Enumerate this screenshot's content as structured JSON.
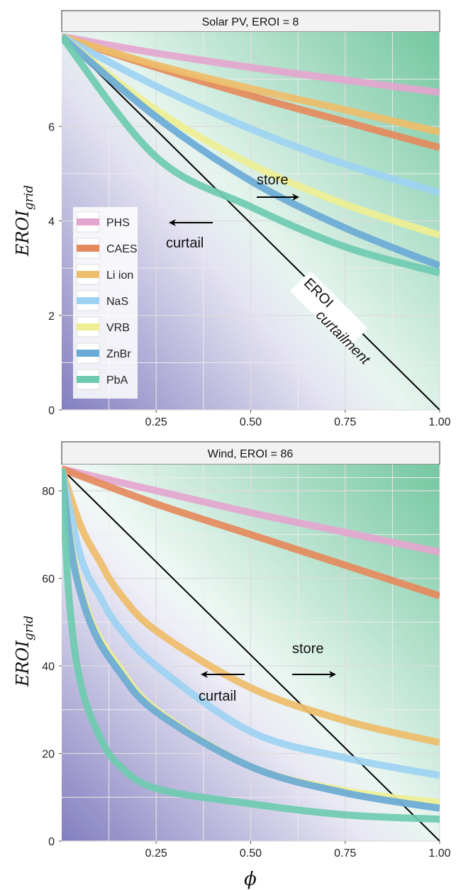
{
  "chart_data": [
    {
      "type": "line",
      "title": "Solar PV, EROI = 8",
      "ylabel": "EROI",
      "ylabel_sub": "grid",
      "xlabel": "",
      "xlim": [
        0,
        1
      ],
      "ylim": [
        0,
        8
      ],
      "xticks": [
        {
          "v": 0.25,
          "label": "0.25"
        },
        {
          "v": 0.5,
          "label": "0.50"
        },
        {
          "v": 0.75,
          "label": "0.75"
        },
        {
          "v": 1.0,
          "label": "1.00"
        }
      ],
      "yticks": [
        {
          "v": 0,
          "label": "0"
        },
        {
          "v": 2,
          "label": "2"
        },
        {
          "v": 4,
          "label": "4"
        },
        {
          "v": 6,
          "label": "6"
        }
      ],
      "grid": true,
      "legend_position": "left",
      "series": [
        {
          "name": "PHS",
          "color": "#e4a6cf",
          "x": [
            0,
            0.25,
            0.5,
            0.75,
            1.0
          ],
          "y": [
            7.9,
            7.55,
            7.25,
            6.98,
            6.72
          ]
        },
        {
          "name": "CAES",
          "color": "#e58a5c",
          "x": [
            0,
            0.25,
            0.5,
            0.75,
            1.0
          ],
          "y": [
            7.9,
            7.25,
            6.65,
            6.1,
            5.55
          ]
        },
        {
          "name": "Li ion",
          "color": "#eebd6a",
          "x": [
            0,
            0.25,
            0.5,
            0.75,
            1.0
          ],
          "y": [
            7.9,
            7.3,
            6.8,
            6.35,
            5.88
          ]
        },
        {
          "name": "NaS",
          "color": "#9dd2f2",
          "x": [
            0,
            0.25,
            0.5,
            0.75,
            1.0
          ],
          "y": [
            7.9,
            6.85,
            5.95,
            5.2,
            4.6
          ]
        },
        {
          "name": "VRB",
          "color": "#eeef92",
          "x": [
            0,
            0.25,
            0.5,
            0.75,
            1.0
          ],
          "y": [
            7.9,
            6.35,
            5.2,
            4.35,
            3.7
          ]
        },
        {
          "name": "ZnBr",
          "color": "#6aaad6",
          "x": [
            0,
            0.25,
            0.5,
            0.75,
            1.0
          ],
          "y": [
            7.9,
            6.2,
            4.85,
            3.85,
            3.05
          ]
        },
        {
          "name": "PbA",
          "color": "#6fcbb0",
          "x": [
            0,
            0.25,
            0.5,
            0.75,
            1.0
          ],
          "y": [
            7.9,
            5.35,
            4.3,
            3.45,
            2.9
          ]
        }
      ],
      "reference_line": {
        "label": "EROI",
        "label_sub": "curtailment",
        "x": [
          0,
          1
        ],
        "y": [
          7.9,
          0
        ]
      },
      "annotations": {
        "store": "store",
        "curtail": "curtail"
      }
    },
    {
      "type": "line",
      "title": "Wind, EROI = 86",
      "ylabel": "EROI",
      "ylabel_sub": "grid",
      "xlabel": "ϕ",
      "xlim": [
        0,
        1
      ],
      "ylim": [
        0,
        86
      ],
      "xticks": [
        {
          "v": 0.25,
          "label": "0.25"
        },
        {
          "v": 0.5,
          "label": "0.50"
        },
        {
          "v": 0.75,
          "label": "0.75"
        },
        {
          "v": 1.0,
          "label": "1.00"
        }
      ],
      "yticks": [
        {
          "v": 0,
          "label": "0"
        },
        {
          "v": 20,
          "label": "20"
        },
        {
          "v": 40,
          "label": "40"
        },
        {
          "v": 60,
          "label": "60"
        },
        {
          "v": 80,
          "label": "80"
        }
      ],
      "grid": true,
      "series": [
        {
          "name": "PHS",
          "color": "#e4a6cf",
          "x": [
            0,
            0.25,
            0.5,
            0.75,
            1.0
          ],
          "y": [
            85,
            80,
            75,
            70.5,
            66
          ]
        },
        {
          "name": "CAES",
          "color": "#e58a5c",
          "x": [
            0,
            0.25,
            0.5,
            0.75,
            1.0
          ],
          "y": [
            85,
            77,
            70,
            63,
            56
          ]
        },
        {
          "name": "Li ion",
          "color": "#eebd6a",
          "x": [
            0,
            0.05,
            0.1,
            0.15,
            0.25,
            0.5,
            0.75,
            1.0
          ],
          "y": [
            85,
            72,
            64,
            57,
            48,
            35,
            27.5,
            22.5
          ]
        },
        {
          "name": "NaS",
          "color": "#9dd2f2",
          "x": [
            0,
            0.05,
            0.1,
            0.15,
            0.25,
            0.5,
            0.75,
            1.0
          ],
          "y": [
            85,
            65,
            56,
            49,
            40,
            25,
            19,
            15
          ]
        },
        {
          "name": "VRB",
          "color": "#eeef92",
          "x": [
            0,
            0.03,
            0.08,
            0.15,
            0.25,
            0.5,
            0.75,
            1.0
          ],
          "y": [
            85,
            65,
            50,
            40,
            30,
            17,
            11.5,
            8.8
          ]
        },
        {
          "name": "ZnBr",
          "color": "#6aaad6",
          "x": [
            0,
            0.03,
            0.08,
            0.15,
            0.25,
            0.5,
            0.75,
            1.0
          ],
          "y": [
            85,
            64,
            49,
            39,
            29.5,
            17,
            11,
            7.5
          ]
        },
        {
          "name": "PbA",
          "color": "#6fcbb0",
          "x": [
            0,
            0.02,
            0.05,
            0.1,
            0.15,
            0.25,
            0.5,
            0.75,
            1.0
          ],
          "y": [
            85,
            55,
            36,
            24,
            17.5,
            12,
            8.5,
            6,
            5
          ]
        }
      ],
      "reference_line": {
        "x": [
          0,
          1
        ],
        "y": [
          85,
          0
        ]
      },
      "annotations": {
        "store": "store",
        "curtail": "curtail"
      }
    }
  ]
}
